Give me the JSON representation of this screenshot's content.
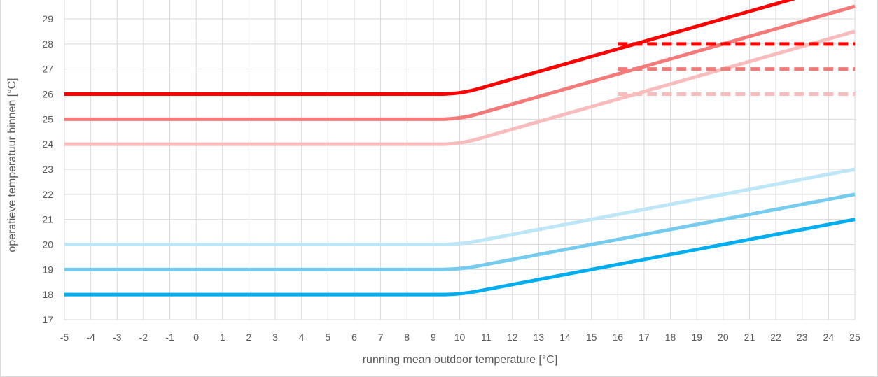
{
  "chart_data": {
    "type": "line",
    "title": "",
    "xlabel": "running mean outdoor temperature [°C]",
    "ylabel": "operatieve temperatuur binnen [°C]",
    "xlim": [
      -5,
      25
    ],
    "ylim": [
      17,
      29.8
    ],
    "x_ticks": [
      -5,
      -4,
      -3,
      -2,
      -1,
      0,
      1,
      2,
      3,
      4,
      5,
      6,
      7,
      8,
      9,
      10,
      11,
      12,
      13,
      14,
      15,
      16,
      17,
      18,
      19,
      20,
      21,
      22,
      23,
      24,
      25
    ],
    "y_ticks": [
      17,
      18,
      19,
      20,
      21,
      22,
      23,
      24,
      25,
      26,
      27,
      28,
      29
    ],
    "grid": true,
    "legend": "none",
    "series": [
      {
        "color": "#ff0000",
        "style": "solid",
        "x": [
          -5,
          10,
          25
        ],
        "y": [
          26,
          26,
          30.5
        ]
      },
      {
        "color": "#f47a7a",
        "style": "solid",
        "x": [
          -5,
          10,
          25
        ],
        "y": [
          25,
          25,
          29.5
        ]
      },
      {
        "color": "#f9bcbc",
        "style": "solid",
        "x": [
          -5,
          10,
          25
        ],
        "y": [
          24,
          24,
          28.5
        ]
      },
      {
        "color": "#ff0000",
        "style": "dashed",
        "x": [
          16,
          25
        ],
        "y": [
          28,
          28
        ]
      },
      {
        "color": "#f47a7a",
        "style": "dashed",
        "x": [
          16,
          25
        ],
        "y": [
          27,
          27
        ]
      },
      {
        "color": "#f9bcbc",
        "style": "dashed",
        "x": [
          16,
          25
        ],
        "y": [
          26,
          26
        ]
      },
      {
        "color": "#bde6f6",
        "style": "solid",
        "x": [
          -5,
          10,
          25
        ],
        "y": [
          20,
          20,
          23
        ]
      },
      {
        "color": "#75cbee",
        "style": "solid",
        "x": [
          -5,
          10,
          25
        ],
        "y": [
          19,
          19,
          22
        ]
      },
      {
        "color": "#00aeef",
        "style": "solid",
        "x": [
          -5,
          10,
          25
        ],
        "y": [
          18,
          18,
          21
        ]
      }
    ]
  }
}
